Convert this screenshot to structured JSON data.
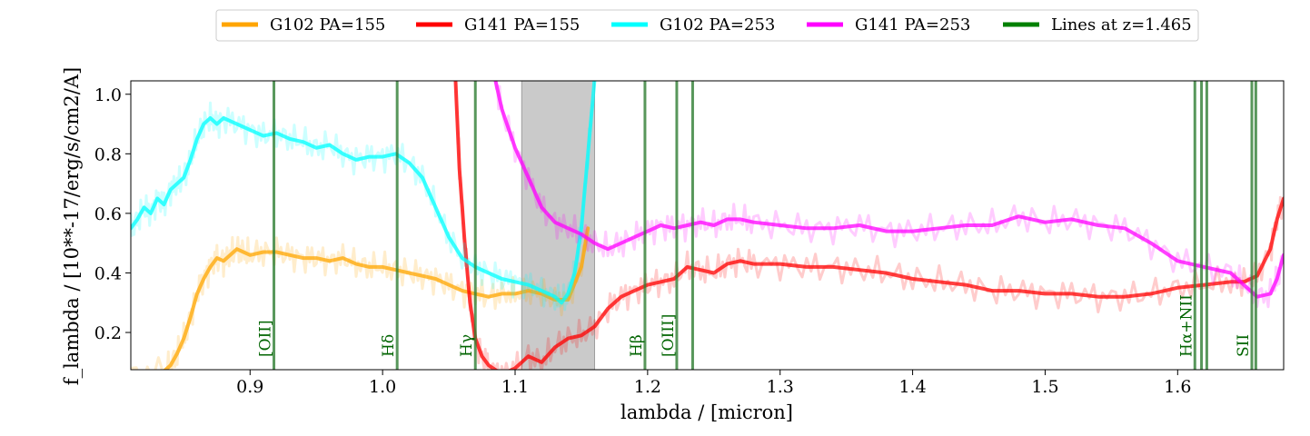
{
  "chart_data": {
    "type": "line",
    "xlabel": "lambda / [micron]",
    "ylabel": "f_lambda / [10**-17/erg/s/cm2/A]",
    "xlim": [
      0.81,
      1.68
    ],
    "ylim": [
      0.075,
      1.045
    ],
    "xticks": [
      0.9,
      1.0,
      1.1,
      1.2,
      1.3,
      1.4,
      1.5,
      1.6
    ],
    "xtick_labels": [
      "0.9",
      "1.0",
      "1.1",
      "1.2",
      "1.3",
      "1.4",
      "1.5",
      "1.6"
    ],
    "yticks": [
      0.2,
      0.4,
      0.6,
      0.8,
      1.0
    ],
    "ytick_labels": [
      "0.2",
      "0.4",
      "0.6",
      "0.8",
      "1.0"
    ],
    "legend": {
      "placement": "top-center, outside plot",
      "entries": [
        {
          "label": "G102 PA=155",
          "color": "#ffa500"
        },
        {
          "label": "G141 PA=155",
          "color": "#ff0000"
        },
        {
          "label": "G102 PA=253",
          "color": "#00ffff"
        },
        {
          "label": "G141 PA=253",
          "color": "#ff00ff"
        },
        {
          "label": "Lines at z=1.465",
          "color": "#008000"
        }
      ]
    },
    "shaded_region": {
      "x": [
        1.105,
        1.16
      ],
      "color": "#c8c8c8"
    },
    "series": [
      {
        "name": "G102 PA=155",
        "color": "#ffa500",
        "x": [
          0.81,
          0.835,
          0.84,
          0.845,
          0.85,
          0.855,
          0.86,
          0.865,
          0.87,
          0.875,
          0.88,
          0.885,
          0.89,
          0.895,
          0.9,
          0.91,
          0.92,
          0.93,
          0.94,
          0.95,
          0.96,
          0.97,
          0.98,
          0.99,
          1.0,
          1.01,
          1.02,
          1.03,
          1.04,
          1.05,
          1.06,
          1.07,
          1.08,
          1.09,
          1.1,
          1.11,
          1.12,
          1.13,
          1.14,
          1.15,
          1.155
        ],
        "y": [
          0.06,
          0.07,
          0.09,
          0.13,
          0.18,
          0.25,
          0.33,
          0.38,
          0.42,
          0.45,
          0.44,
          0.46,
          0.48,
          0.47,
          0.46,
          0.47,
          0.47,
          0.46,
          0.45,
          0.45,
          0.44,
          0.45,
          0.43,
          0.42,
          0.42,
          0.41,
          0.4,
          0.39,
          0.38,
          0.36,
          0.34,
          0.33,
          0.32,
          0.33,
          0.33,
          0.34,
          0.33,
          0.31,
          0.31,
          0.42,
          0.55
        ]
      },
      {
        "name": "G141 PA=155",
        "color": "#ff0000",
        "x": [
          1.055,
          1.058,
          1.062,
          1.066,
          1.07,
          1.075,
          1.08,
          1.09,
          1.1,
          1.11,
          1.12,
          1.13,
          1.14,
          1.15,
          1.16,
          1.17,
          1.18,
          1.19,
          1.2,
          1.21,
          1.22,
          1.23,
          1.24,
          1.25,
          1.26,
          1.27,
          1.28,
          1.3,
          1.32,
          1.34,
          1.36,
          1.38,
          1.4,
          1.42,
          1.44,
          1.46,
          1.48,
          1.5,
          1.52,
          1.54,
          1.56,
          1.58,
          1.6,
          1.62,
          1.64,
          1.65,
          1.66,
          1.67,
          1.675,
          1.68
        ],
        "y": [
          1.05,
          0.75,
          0.5,
          0.3,
          0.18,
          0.12,
          0.09,
          0.06,
          0.08,
          0.12,
          0.1,
          0.15,
          0.18,
          0.19,
          0.22,
          0.28,
          0.32,
          0.34,
          0.36,
          0.37,
          0.38,
          0.42,
          0.41,
          0.4,
          0.43,
          0.44,
          0.43,
          0.43,
          0.42,
          0.42,
          0.41,
          0.4,
          0.38,
          0.37,
          0.36,
          0.34,
          0.34,
          0.33,
          0.33,
          0.32,
          0.32,
          0.33,
          0.35,
          0.36,
          0.37,
          0.37,
          0.39,
          0.48,
          0.58,
          0.65
        ]
      },
      {
        "name": "G102 PA=253",
        "color": "#00ffff",
        "x": [
          0.81,
          0.815,
          0.82,
          0.825,
          0.83,
          0.835,
          0.84,
          0.845,
          0.85,
          0.855,
          0.86,
          0.865,
          0.87,
          0.875,
          0.88,
          0.89,
          0.9,
          0.91,
          0.92,
          0.93,
          0.94,
          0.95,
          0.96,
          0.97,
          0.98,
          0.99,
          1.0,
          1.01,
          1.02,
          1.03,
          1.04,
          1.05,
          1.06,
          1.07,
          1.08,
          1.09,
          1.1,
          1.11,
          1.12,
          1.13,
          1.135,
          1.14,
          1.145,
          1.15,
          1.155,
          1.16
        ],
        "y": [
          0.55,
          0.58,
          0.62,
          0.6,
          0.65,
          0.63,
          0.68,
          0.7,
          0.72,
          0.78,
          0.85,
          0.9,
          0.92,
          0.9,
          0.92,
          0.9,
          0.88,
          0.86,
          0.87,
          0.85,
          0.84,
          0.82,
          0.83,
          0.8,
          0.78,
          0.79,
          0.79,
          0.8,
          0.77,
          0.72,
          0.62,
          0.52,
          0.45,
          0.42,
          0.4,
          0.38,
          0.37,
          0.36,
          0.34,
          0.32,
          0.3,
          0.33,
          0.4,
          0.55,
          0.8,
          1.05
        ]
      },
      {
        "name": "G141 PA=253",
        "color": "#ff00ff",
        "x": [
          1.085,
          1.09,
          1.1,
          1.11,
          1.12,
          1.13,
          1.14,
          1.15,
          1.16,
          1.17,
          1.18,
          1.19,
          1.2,
          1.21,
          1.22,
          1.23,
          1.24,
          1.25,
          1.26,
          1.27,
          1.28,
          1.3,
          1.32,
          1.34,
          1.36,
          1.38,
          1.4,
          1.42,
          1.44,
          1.46,
          1.48,
          1.5,
          1.52,
          1.54,
          1.56,
          1.58,
          1.6,
          1.62,
          1.64,
          1.65,
          1.66,
          1.67,
          1.675,
          1.68
        ],
        "y": [
          1.05,
          0.95,
          0.82,
          0.72,
          0.62,
          0.57,
          0.55,
          0.53,
          0.5,
          0.48,
          0.5,
          0.52,
          0.54,
          0.56,
          0.55,
          0.56,
          0.57,
          0.56,
          0.58,
          0.58,
          0.57,
          0.56,
          0.55,
          0.55,
          0.56,
          0.54,
          0.54,
          0.55,
          0.56,
          0.56,
          0.59,
          0.57,
          0.58,
          0.56,
          0.55,
          0.5,
          0.44,
          0.42,
          0.4,
          0.36,
          0.32,
          0.33,
          0.38,
          0.46
        ]
      }
    ],
    "emission_lines": [
      {
        "label": "[OII]",
        "x": [
          0.918
        ]
      },
      {
        "label": "Hδ",
        "x": [
          1.011
        ]
      },
      {
        "label": "Hγ",
        "x": [
          1.07
        ]
      },
      {
        "label": "Hβ",
        "x": [
          1.198
        ]
      },
      {
        "label": "[OIII]",
        "x": [
          1.222,
          1.234
        ]
      },
      {
        "label": "Hα+NII",
        "x": [
          1.613,
          1.618,
          1.622
        ]
      },
      {
        "label": "SII",
        "x": [
          1.656,
          1.659
        ]
      }
    ]
  }
}
